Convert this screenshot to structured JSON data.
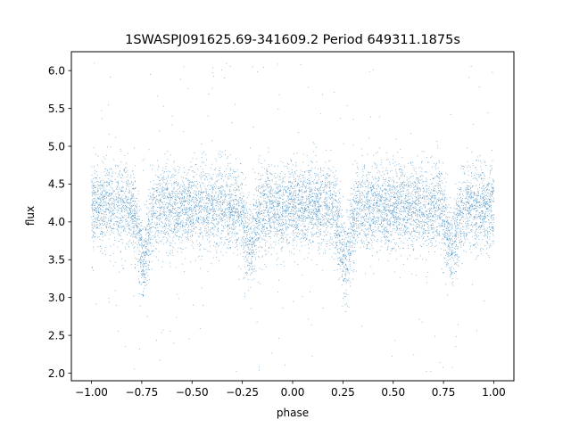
{
  "chart_data": {
    "type": "scatter",
    "title": "1SWASPJ091625.69-341609.2 Period 649311.1875s",
    "xlabel": "phase",
    "ylabel": "flux",
    "xlim": [
      -1.1,
      1.1
    ],
    "ylim": [
      1.9,
      6.25
    ],
    "x_ticks": [
      -1.0,
      -0.75,
      -0.5,
      -0.25,
      0.0,
      0.25,
      0.5,
      0.75,
      1.0
    ],
    "x_tick_labels": [
      "−1.00",
      "−0.75",
      "−0.50",
      "−0.25",
      "0.00",
      "0.25",
      "0.50",
      "0.75",
      "1.00"
    ],
    "y_ticks": [
      2.0,
      2.5,
      3.0,
      3.5,
      4.0,
      4.5,
      5.0,
      5.5,
      6.0
    ],
    "y_tick_labels": [
      "2.0",
      "2.5",
      "3.0",
      "3.5",
      "4.0",
      "4.5",
      "5.0",
      "5.5",
      "6.0"
    ],
    "grid": false,
    "point_color": "#1f77b4",
    "x_range": [
      -1.0,
      1.0
    ],
    "baseline_flux": 4.2,
    "dips": [
      {
        "phase": -0.74,
        "flux": 3.5
      },
      {
        "phase": -0.21,
        "flux": 3.7
      },
      {
        "phase": 0.26,
        "flux": 3.5
      },
      {
        "phase": 0.79,
        "flux": 3.7
      }
    ],
    "outlier_range": [
      2.0,
      6.1
    ]
  }
}
